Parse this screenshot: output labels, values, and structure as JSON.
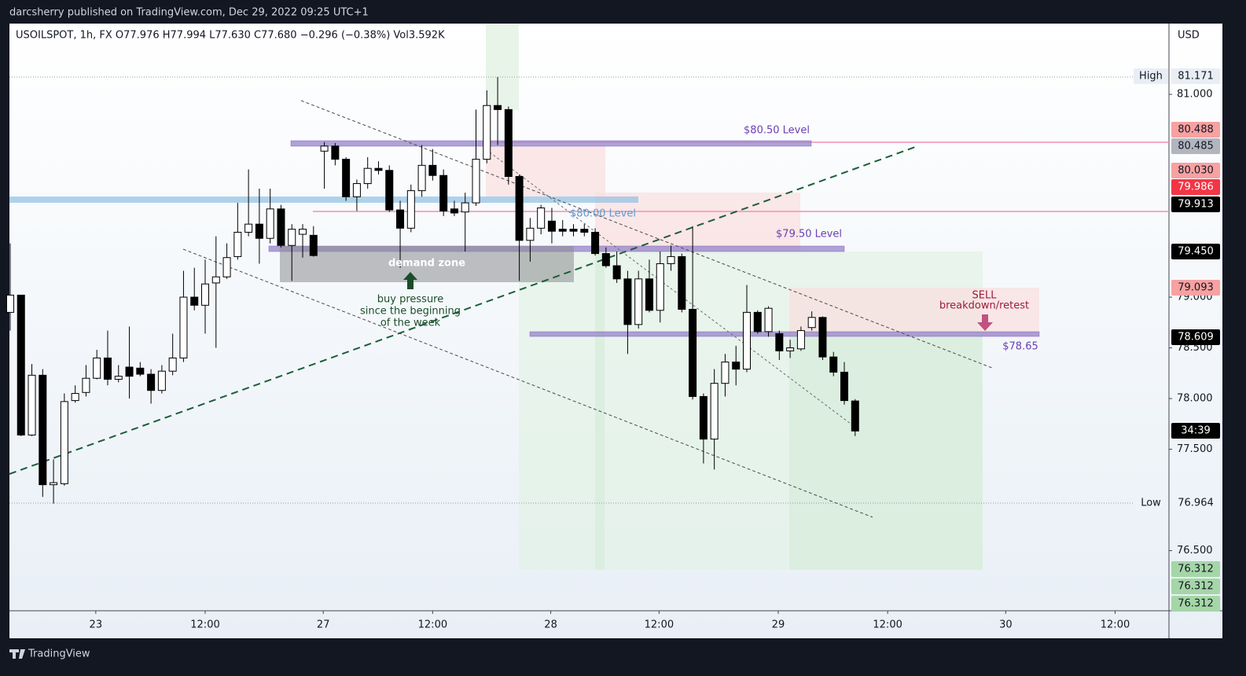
{
  "header": "darcsherry published on TradingView.com, Dec 29, 2022 09:25 UTC+1",
  "footer": "TradingView",
  "chart_data": {
    "type": "candlestick",
    "legend_text": "USOILSPOT, 1h, FX  O77.976  H77.994  L77.630  C77.680  −0.296 (−0.38%)  Vol3.592K",
    "currency": "USD",
    "up_color": "#ffffff",
    "down_color": "#000000",
    "outline_color": "#000000",
    "x": [
      0,
      1,
      2,
      3,
      4,
      5,
      6,
      7,
      8,
      9,
      10,
      11,
      12,
      13,
      14,
      15,
      16,
      17,
      18,
      19,
      20,
      21,
      22,
      23,
      24,
      25,
      26,
      27,
      28,
      29,
      30,
      31,
      32,
      33,
      34,
      35,
      36,
      37,
      38,
      39,
      40,
      41,
      42,
      43,
      44,
      45,
      46,
      47,
      48,
      49,
      50,
      51,
      52,
      53,
      54,
      55,
      56,
      57,
      58,
      59,
      60,
      61,
      62,
      63,
      64,
      65,
      66,
      67,
      68,
      69,
      70,
      71,
      72,
      73,
      74,
      75,
      76,
      77,
      78
    ],
    "open": [
      78.85,
      79.02,
      77.64,
      78.23,
      77.15,
      77.16,
      77.98,
      78.06,
      78.2,
      78.4,
      78.19,
      78.31,
      78.3,
      78.24,
      78.08,
      78.27,
      78.4,
      79.0,
      78.92,
      79.14,
      79.2,
      79.4,
      79.64,
      79.72,
      79.58,
      79.87,
      79.51,
      79.62,
      79.61,
      80.44,
      80.49,
      80.36,
      79.99,
      80.12,
      80.27,
      80.25,
      79.86,
      79.68,
      80.05,
      80.3,
      80.2,
      79.87,
      79.84,
      79.93,
      80.36,
      80.89,
      80.85,
      80.19,
      79.56,
      79.68,
      79.75,
      79.67,
      79.67,
      79.67,
      79.64,
      79.43,
      79.31,
      79.18,
      78.73,
      79.18,
      78.87,
      79.33,
      79.4,
      78.88,
      78.02,
      77.6,
      78.15,
      78.36,
      78.29,
      78.85,
      78.66,
      78.64,
      78.47,
      78.49,
      78.7,
      78.8,
      78.41,
      78.26,
      77.976
    ],
    "high": [
      79.53,
      79.02,
      78.34,
      78.29,
      77.4,
      78.05,
      78.13,
      78.33,
      78.48,
      78.67,
      78.33,
      78.71,
      78.36,
      78.29,
      78.33,
      78.64,
      79.26,
      79.29,
      79.37,
      79.6,
      79.53,
      79.93,
      80.26,
      80.07,
      80.07,
      79.91,
      79.72,
      79.72,
      79.7,
      80.53,
      80.52,
      80.38,
      80.16,
      80.38,
      80.34,
      80.3,
      79.95,
      80.11,
      80.5,
      80.46,
      80.26,
      79.95,
      80.03,
      80.85,
      81.04,
      81.171,
      80.88,
      80.21,
      79.78,
      79.91,
      79.88,
      79.76,
      79.72,
      79.72,
      79.68,
      79.49,
      79.45,
      79.26,
      79.26,
      79.37,
      79.45,
      79.51,
      79.43,
      79.7,
      78.05,
      78.29,
      78.44,
      78.52,
      79.12,
      78.87,
      78.91,
      78.67,
      78.58,
      78.71,
      78.86,
      78.81,
      78.46,
      78.36,
      77.994
    ],
    "low": [
      78.67,
      77.63,
      77.63,
      77.03,
      76.964,
      77.14,
      77.96,
      78.02,
      78.19,
      78.13,
      78.16,
      78.0,
      78.22,
      77.95,
      78.05,
      78.23,
      78.36,
      78.87,
      78.64,
      78.5,
      79.18,
      79.37,
      79.6,
      79.33,
      79.53,
      79.49,
      79.16,
      79.39,
      79.4,
      80.07,
      80.3,
      79.95,
      79.85,
      80.07,
      80.21,
      79.84,
      79.29,
      79.64,
      79.99,
      80.15,
      79.8,
      79.8,
      79.45,
      79.9,
      80.32,
      80.5,
      80.11,
      79.16,
      79.35,
      79.62,
      79.53,
      79.6,
      79.6,
      79.6,
      79.41,
      79.29,
      79.14,
      78.44,
      78.69,
      78.85,
      78.75,
      79.26,
      78.85,
      77.99,
      77.36,
      77.3,
      78.02,
      78.13,
      78.26,
      78.64,
      78.61,
      78.38,
      78.4,
      78.47,
      78.67,
      78.38,
      78.22,
      77.94,
      77.63
    ],
    "close": [
      79.02,
      77.64,
      78.23,
      77.15,
      77.17,
      77.97,
      78.05,
      78.2,
      78.4,
      78.19,
      78.22,
      78.22,
      78.24,
      78.08,
      78.27,
      78.4,
      79.0,
      78.92,
      79.13,
      79.2,
      79.39,
      79.64,
      79.72,
      79.58,
      79.87,
      79.51,
      79.67,
      79.67,
      79.41,
      80.49,
      80.36,
      79.99,
      80.12,
      80.27,
      80.25,
      79.86,
      79.68,
      80.05,
      80.3,
      80.2,
      79.85,
      79.83,
      79.93,
      80.36,
      80.89,
      80.85,
      80.19,
      79.56,
      79.68,
      79.88,
      79.65,
      79.65,
      79.65,
      79.64,
      79.43,
      79.31,
      79.18,
      78.73,
      79.18,
      78.87,
      79.33,
      79.4,
      78.88,
      78.02,
      77.6,
      78.15,
      78.36,
      78.29,
      78.85,
      78.66,
      78.89,
      78.47,
      78.5,
      78.67,
      78.8,
      78.41,
      78.26,
      77.98,
      77.68
    ],
    "xlim": [
      -0.07,
      106.97
    ],
    "xticks": [
      {
        "value": 7.9,
        "label": "23"
      },
      {
        "value": 18,
        "label": "12:00"
      },
      {
        "value": 28.9,
        "label": "27"
      },
      {
        "value": 39,
        "label": "12:00"
      },
      {
        "value": 49.9,
        "label": "28"
      },
      {
        "value": 59.9,
        "label": "12:00"
      },
      {
        "value": 70.9,
        "label": "29"
      },
      {
        "value": 81,
        "label": "12:00"
      },
      {
        "value": 91.9,
        "label": "30"
      },
      {
        "value": 102,
        "label": "12:00"
      }
    ],
    "ylim": [
      75.907,
      81.698
    ],
    "yticks": [
      {
        "value": 81,
        "label": "81.000"
      },
      {
        "value": 79,
        "label": "79.000"
      },
      {
        "value": 78.5,
        "label": "78.500"
      },
      {
        "value": 78,
        "label": "78.000"
      },
      {
        "value": 77.5,
        "label": "77.500"
      },
      {
        "value": 76.5,
        "label": "76.500"
      }
    ],
    "price_badges": [
      {
        "label": "High",
        "bg": "#e9eef4",
        "fg": "#131722"
      },
      {
        "label": "81.171",
        "bg": "#e9eef4",
        "fg": "#131722"
      },
      {
        "label": "80.488",
        "bg": "#f7a1a1",
        "fg": "#131722"
      },
      {
        "label": "80.485",
        "bg": "#b2b5be",
        "fg": "#131722"
      },
      {
        "label": "80.030",
        "bg": "#f7a1a1",
        "fg": "#131722"
      },
      {
        "label": "79.986",
        "bg": "#f23645",
        "fg": "#ffffff"
      },
      {
        "label": "79.913",
        "bg": "#000000",
        "fg": "#ffffff"
      },
      {
        "label": "79.450",
        "bg": "#000000",
        "fg": "#ffffff"
      },
      {
        "label": "79.093",
        "bg": "#f7a1a1",
        "fg": "#131722"
      },
      {
        "label": "78.609",
        "bg": "#000000",
        "fg": "#ffffff"
      },
      {
        "label": "34:39",
        "bg": "#000000",
        "fg": "#ffffff"
      },
      {
        "label": "Low",
        "bg": "#eef3f8",
        "fg": "#131722"
      },
      {
        "label": "76.964",
        "bg": "#eef3f8",
        "fg": "#131722"
      },
      {
        "label": "76.312",
        "bg": "#a5d6a7",
        "fg": "#131722"
      },
      {
        "label": "76.312",
        "bg": "#a5d6a7",
        "fg": "#131722"
      },
      {
        "label": "76.312",
        "bg": "#a5d6a7",
        "fg": "#131722"
      }
    ],
    "annotations": [
      {
        "text": "$80.50 Level",
        "color": "#6a3fb5"
      },
      {
        "text": "$80.00 Level",
        "color": "#5b9bd5"
      },
      {
        "text": "$79.50 Level",
        "color": "#6a3fb5"
      },
      {
        "text": "$78.65",
        "color": "#6a3fb5"
      },
      {
        "text": "demand zone",
        "color": "#ffffff"
      },
      {
        "text": "buy pressure",
        "color": "#1b4d2a"
      },
      {
        "text": "since the beginning",
        "color": "#1b4d2a"
      },
      {
        "text": "of the week",
        "color": "#1b4d2a"
      },
      {
        "text": "SELL",
        "color": "#9c1b3a"
      },
      {
        "text": "breakdown/retest",
        "color": "#9c1b3a"
      }
    ]
  }
}
